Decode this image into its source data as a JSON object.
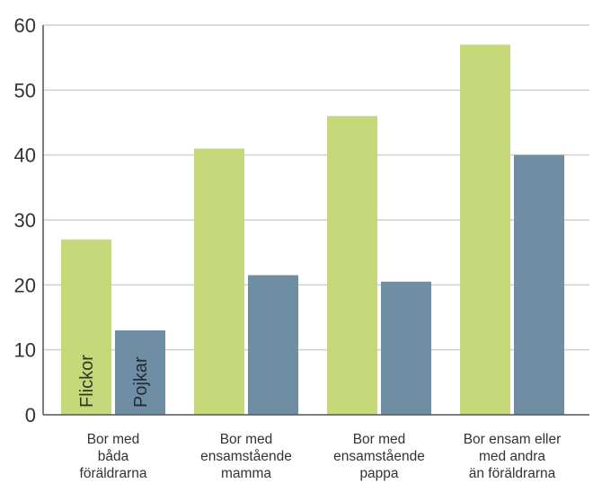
{
  "chart_data": {
    "type": "bar",
    "title": "",
    "xlabel": "",
    "ylabel": "",
    "ylim": [
      0,
      60
    ],
    "yticks": [
      0,
      10,
      20,
      30,
      40,
      50,
      60
    ],
    "grid": true,
    "categories": [
      [
        "Bor med",
        "båda",
        "föräldrarna"
      ],
      [
        "Bor med",
        "ensamstående",
        "mamma"
      ],
      [
        "Bor med",
        "ensamstående",
        "pappa"
      ],
      [
        "Bor ensam eller",
        "med andra",
        "än föräldrarna"
      ]
    ],
    "series": [
      {
        "name": "Flickor",
        "color": "#c5d97a",
        "values": [
          27,
          41,
          46,
          57
        ]
      },
      {
        "name": "Pojkar",
        "color": "#6f8ea3",
        "values": [
          13,
          21.5,
          20.5,
          40
        ]
      }
    ],
    "legend": "inside-first-bars"
  }
}
